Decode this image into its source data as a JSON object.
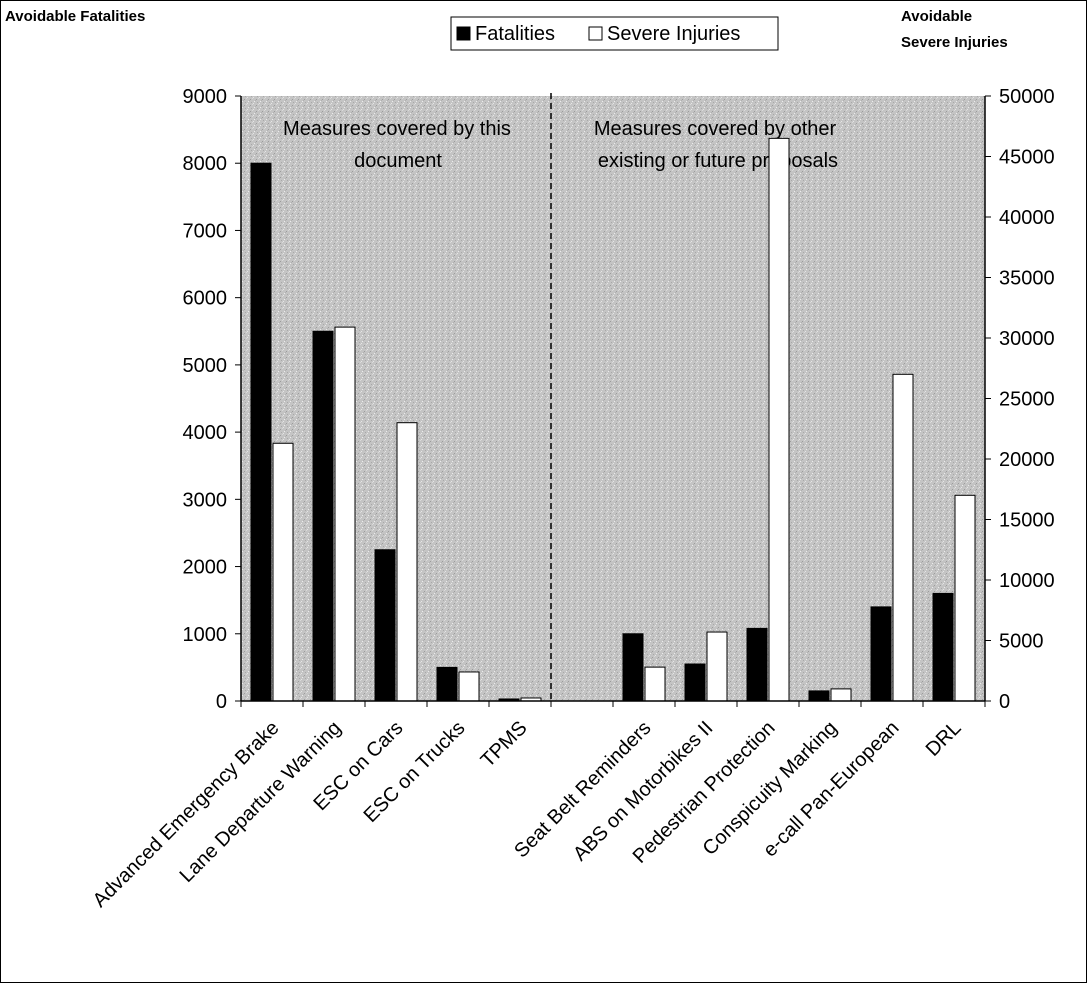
{
  "chart_data": {
    "type": "bar",
    "left_axis_title": "Avoidable Fatalities",
    "right_axis_title_lines": [
      "Avoidable",
      "Severe Injuries"
    ],
    "legend": [
      "Fatalities",
      "Severe Injuries"
    ],
    "categories": [
      "Advanced Emergency Brake",
      "Lane Departure Warning",
      "ESC on Cars",
      "ESC on Trucks",
      "TPMS",
      "Seat Belt Reminders",
      "ABS on Motorbikes II",
      "Pedestrian Protection",
      "Conspicuity Marking",
      "e-call Pan-European",
      "DRL"
    ],
    "category_slots": [
      0,
      1,
      2,
      3,
      4,
      6,
      7,
      8,
      9,
      10,
      11
    ],
    "slot_count": 12,
    "series": [
      {
        "name": "Fatalities",
        "axis": "left",
        "color": "#000000",
        "values": [
          8000,
          5500,
          2250,
          500,
          30,
          1000,
          550,
          1080,
          150,
          1400,
          1600
        ]
      },
      {
        "name": "Severe Injuries",
        "axis": "right",
        "color": "#ffffff",
        "values": [
          21300,
          30900,
          23000,
          2400,
          250,
          2800,
          5700,
          46500,
          1000,
          27000,
          17000
        ]
      }
    ],
    "ylim_left": [
      0,
      9000
    ],
    "yticks_left": [
      "0",
      "1000",
      "2000",
      "3000",
      "4000",
      "5000",
      "6000",
      "7000",
      "8000",
      "9000"
    ],
    "ylim_right": [
      0,
      50000
    ],
    "yticks_right": [
      "0",
      "5000",
      "10000",
      "15000",
      "20000",
      "25000",
      "30000",
      "35000",
      "40000",
      "45000",
      "50000"
    ],
    "annotations": [
      {
        "lines": [
          "Measures covered by this",
          "document"
        ]
      },
      {
        "lines": [
          "Measures covered by other",
          "existing or future proposals"
        ]
      }
    ],
    "plot_background": "#c8c8c8",
    "grid": false,
    "divider": "dashed"
  }
}
